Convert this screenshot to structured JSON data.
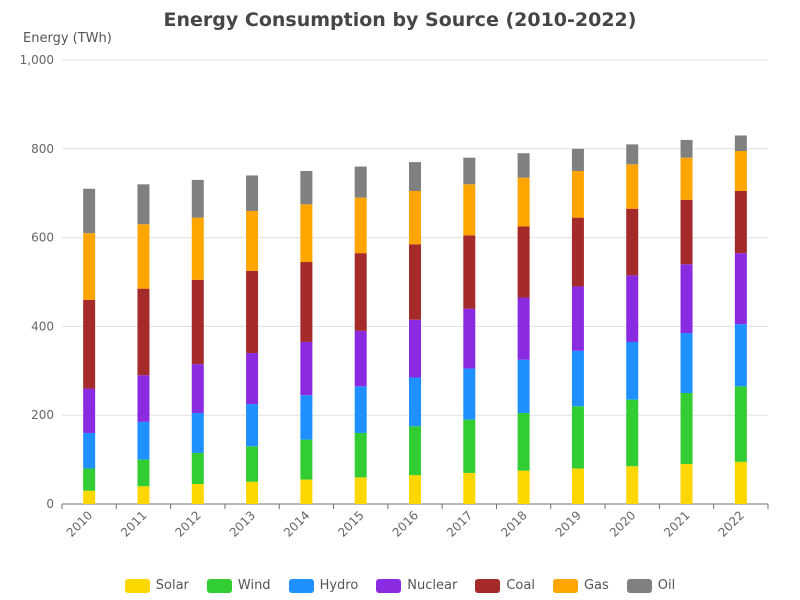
{
  "chart_data": {
    "type": "bar",
    "stacked": true,
    "title": "Energy Consumption by Source (2010-2022)",
    "ylabel": "Energy (TWh)",
    "xlabel": "",
    "ylim": [
      0,
      1000
    ],
    "yticks": [
      "0",
      "200",
      "400",
      "600",
      "800",
      "1,000"
    ],
    "ytick_values": [
      0,
      200,
      400,
      600,
      800,
      1000
    ],
    "grid": true,
    "legend_position": "bottom",
    "categories": [
      "2010",
      "2011",
      "2012",
      "2013",
      "2014",
      "2015",
      "2016",
      "2017",
      "2018",
      "2019",
      "2020",
      "2021",
      "2022"
    ],
    "series": [
      {
        "name": "Solar",
        "color": "#FFD700",
        "values": [
          30,
          40,
          45,
          50,
          55,
          60,
          65,
          70,
          75,
          80,
          85,
          90,
          95
        ]
      },
      {
        "name": "Wind",
        "color": "#32CD32",
        "values": [
          50,
          60,
          70,
          80,
          90,
          100,
          110,
          120,
          130,
          140,
          150,
          160,
          170
        ]
      },
      {
        "name": "Hydro",
        "color": "#1E90FF",
        "values": [
          80,
          85,
          90,
          95,
          100,
          105,
          110,
          115,
          120,
          125,
          130,
          135,
          140
        ]
      },
      {
        "name": "Nuclear",
        "color": "#8A2BE2",
        "values": [
          100,
          105,
          110,
          115,
          120,
          125,
          130,
          135,
          140,
          145,
          150,
          155,
          160
        ]
      },
      {
        "name": "Coal",
        "color": "#A52A2A",
        "values": [
          200,
          195,
          190,
          185,
          180,
          175,
          170,
          165,
          160,
          155,
          150,
          145,
          140
        ]
      },
      {
        "name": "Gas",
        "color": "#FFA500",
        "values": [
          150,
          145,
          140,
          135,
          130,
          125,
          120,
          115,
          110,
          105,
          100,
          95,
          90
        ]
      },
      {
        "name": "Oil",
        "color": "#808080",
        "values": [
          100,
          90,
          85,
          80,
          75,
          70,
          65,
          60,
          55,
          50,
          45,
          40,
          35
        ]
      }
    ]
  }
}
